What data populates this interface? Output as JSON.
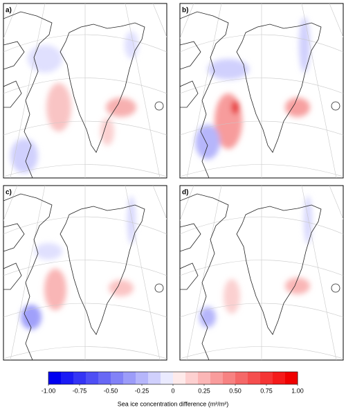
{
  "panels": [
    {
      "label": "a)"
    },
    {
      "label": "b)"
    },
    {
      "label": "c)"
    },
    {
      "label": "d)"
    }
  ],
  "colorbar": {
    "lim": [
      -1,
      1
    ],
    "colors": [
      "#0000f0",
      "#1a1af5",
      "#3434f5",
      "#4e4ef5",
      "#6868f5",
      "#8282f7",
      "#9c9cf9",
      "#b6b6fb",
      "#d0d0fd",
      "#eaeafe",
      "#feeaea",
      "#fdd0d0",
      "#fbb6b6",
      "#f99c9c",
      "#f78282",
      "#f56868",
      "#f54e4e",
      "#f53434",
      "#f51a1a",
      "#f00000"
    ],
    "ticks": [
      {
        "value": -1,
        "label": "-1.00"
      },
      {
        "value": -0.75,
        "label": "-0.75"
      },
      {
        "value": -0.5,
        "label": "-0.50"
      },
      {
        "value": -0.25,
        "label": "-0.25"
      },
      0,
      {
        "value": 0.25,
        "label": "0.25"
      },
      {
        "value": 0.5,
        "label": "0.50"
      },
      {
        "value": 0.75,
        "label": "0.75"
      },
      {
        "value": 1,
        "label": "1.00"
      }
    ],
    "label": "Sea ice concentration difference (m²/m²)"
  }
}
